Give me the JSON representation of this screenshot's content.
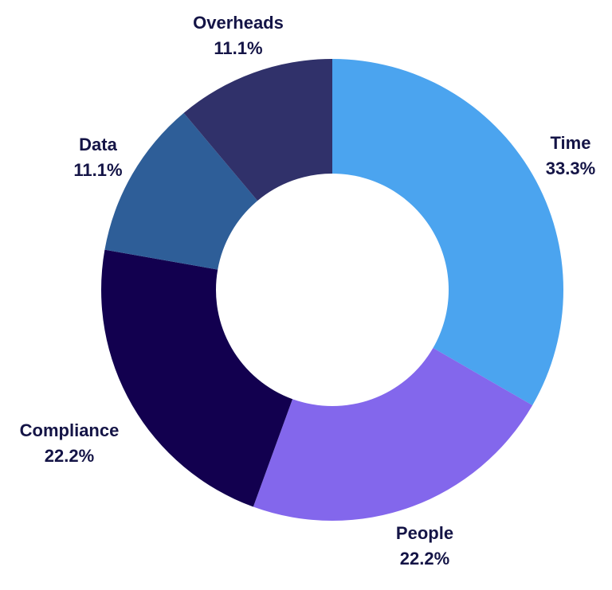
{
  "chart_data": {
    "type": "pie",
    "variant": "donut",
    "title": "",
    "slices": [
      {
        "label": "Time",
        "value": 33.3,
        "display": "33.3%",
        "color": "#4ba4ef"
      },
      {
        "label": "People",
        "value": 22.2,
        "display": "22.2%",
        "color": "#8367ec"
      },
      {
        "label": "Compliance",
        "value": 22.2,
        "display": "22.2%",
        "color": "#12004f"
      },
      {
        "label": "Data",
        "value": 11.1,
        "display": "11.1%",
        "color": "#2e5e98"
      },
      {
        "label": "Overheads",
        "value": 11.1,
        "display": "11.1%",
        "color": "#30316a"
      }
    ],
    "start_angle_deg": 0,
    "direction": "clockwise",
    "legend": "none",
    "label_color": "#141446"
  }
}
